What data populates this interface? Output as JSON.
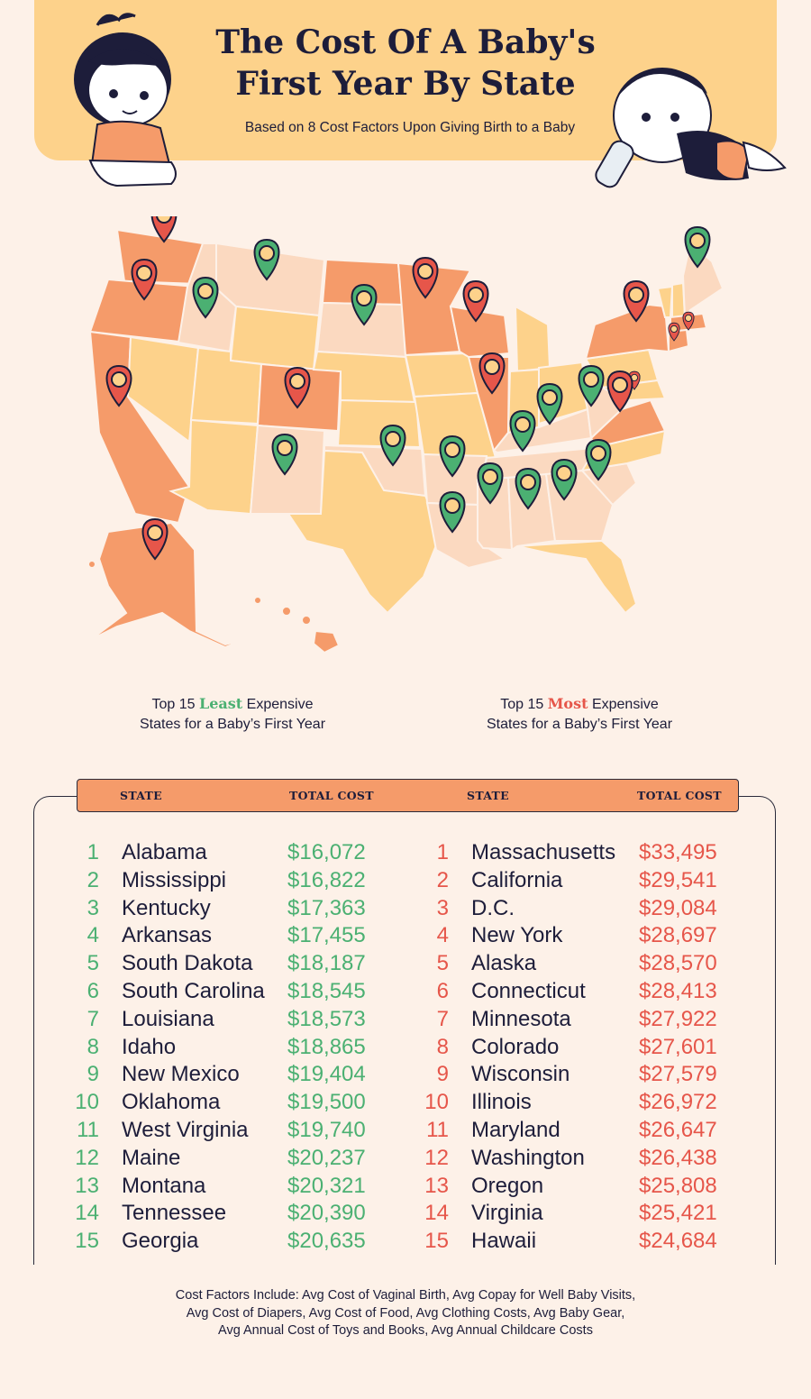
{
  "header": {
    "title_line1": "The Cost Of A Baby's",
    "title_line2": "First Year By State",
    "subtitle": "Based on 8 Cost Factors Upon Giving Birth to a Baby"
  },
  "colors": {
    "header_bg": "#fdd28b",
    "background": "#fdf1e8",
    "least_green": "#4bb072",
    "most_red": "#e6564a",
    "table_header": "#f59b6a"
  },
  "captions": {
    "least": {
      "prefix": "Top 15 ",
      "highlight": "Least",
      "suffix": " Expensive",
      "line2": "States for a Baby’s First Year"
    },
    "most": {
      "prefix": "Top 15 ",
      "highlight": "Most",
      "suffix": " Expensive",
      "line2": "States for a Baby’s First Year"
    }
  },
  "table": {
    "headers": {
      "state_left": "STATE",
      "cost_left": "TOTAL COST",
      "state_right": "STATE",
      "cost_right": "TOTAL COST"
    },
    "least": [
      {
        "rank": "1",
        "state": "Alabama",
        "cost": "$16,072"
      },
      {
        "rank": "2",
        "state": "Mississippi",
        "cost": "$16,822"
      },
      {
        "rank": "3",
        "state": "Kentucky",
        "cost": "$17,363"
      },
      {
        "rank": "4",
        "state": "Arkansas",
        "cost": "$17,455"
      },
      {
        "rank": "5",
        "state": "South Dakota",
        "cost": "$18,187"
      },
      {
        "rank": "6",
        "state": "South Carolina",
        "cost": "$18,545"
      },
      {
        "rank": "7",
        "state": "Louisiana",
        "cost": "$18,573"
      },
      {
        "rank": "8",
        "state": "Idaho",
        "cost": "$18,865"
      },
      {
        "rank": "9",
        "state": "New Mexico",
        "cost": "$19,404"
      },
      {
        "rank": "10",
        "state": "Oklahoma",
        "cost": "$19,500"
      },
      {
        "rank": "11",
        "state": "West Virginia",
        "cost": "$19,740"
      },
      {
        "rank": "12",
        "state": "Maine",
        "cost": "$20,237"
      },
      {
        "rank": "13",
        "state": "Montana",
        "cost": "$20,321"
      },
      {
        "rank": "14",
        "state": "Tennessee",
        "cost": "$20,390"
      },
      {
        "rank": "15",
        "state": "Georgia",
        "cost": "$20,635"
      }
    ],
    "most": [
      {
        "rank": "1",
        "state": "Massachusetts",
        "cost": "$33,495"
      },
      {
        "rank": "2",
        "state": "California",
        "cost": "$29,541"
      },
      {
        "rank": "3",
        "state": "D.C.",
        "cost": "$29,084"
      },
      {
        "rank": "4",
        "state": "New York",
        "cost": "$28,697"
      },
      {
        "rank": "5",
        "state": "Alaska",
        "cost": "$28,570"
      },
      {
        "rank": "6",
        "state": "Connecticut",
        "cost": "$28,413"
      },
      {
        "rank": "7",
        "state": "Minnesota",
        "cost": "$27,922"
      },
      {
        "rank": "8",
        "state": "Colorado",
        "cost": "$27,601"
      },
      {
        "rank": "9",
        "state": "Wisconsin",
        "cost": "$27,579"
      },
      {
        "rank": "10",
        "state": "Illinois",
        "cost": "$26,972"
      },
      {
        "rank": "11",
        "state": "Maryland",
        "cost": "$26,647"
      },
      {
        "rank": "12",
        "state": "Washington",
        "cost": "$26,438"
      },
      {
        "rank": "13",
        "state": "Oregon",
        "cost": "$25,808"
      },
      {
        "rank": "14",
        "state": "Virginia",
        "cost": "$25,421"
      },
      {
        "rank": "15",
        "state": "Hawaii",
        "cost": "$24,684"
      }
    ]
  },
  "map": {
    "marker_states_least": [
      "Alabama",
      "Mississippi",
      "Kentucky",
      "Arkansas",
      "South Dakota",
      "South Carolina",
      "Louisiana",
      "Idaho",
      "New Mexico",
      "Oklahoma",
      "West Virginia",
      "Maine",
      "Montana",
      "Tennessee",
      "Georgia"
    ],
    "marker_states_most": [
      "Massachusetts",
      "California",
      "D.C.",
      "New York",
      "Alaska",
      "Connecticut",
      "Minnesota",
      "Colorado",
      "Wisconsin",
      "Illinois",
      "Maryland",
      "Washington",
      "Oregon",
      "Virginia",
      "Hawaii"
    ]
  },
  "footer": {
    "line1": "Cost Factors Include: Avg Cost of Vaginal Birth, Avg Copay for Well Baby Visits,",
    "line2": "Avg Cost of Diapers, Avg Cost of Food, Avg Clothing Costs, Avg Baby Gear,",
    "line3": "Avg Annual Cost of Toys and Books, Avg Annual Childcare Costs"
  }
}
